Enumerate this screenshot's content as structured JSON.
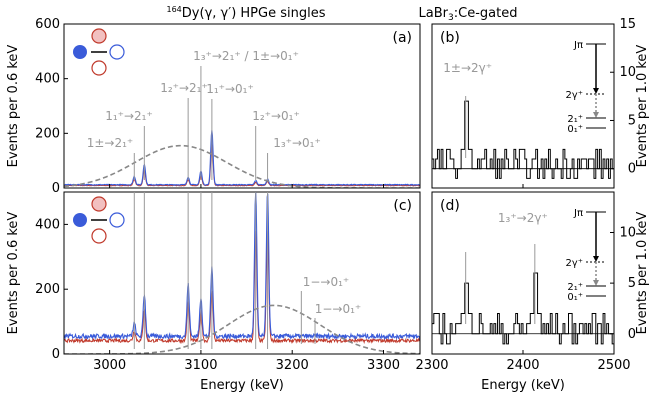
{
  "left_title": "164Dy(γ⃗, γ′) HPGe singles",
  "left_title_parts": {
    "mass": "164",
    "rest": "Dy(",
    "gamma": "γ",
    "comma": ", ",
    "gammap": "γ′",
    "close": ") HPGe singles"
  },
  "right_title": "LaBr3:Ce-gated",
  "right_title_parts": {
    "a": "LaBr",
    "sub": "3",
    "b": ":Ce-gated"
  },
  "chart_data": [
    {
      "panel": "(a)",
      "type": "line",
      "xlabel": "Energy (keV)",
      "ylabel": "Events per 0.6 keV",
      "xlim": [
        2950,
        3340
      ],
      "ylim": [
        0,
        600
      ],
      "xticks": [
        3000,
        3100,
        3200,
        3300
      ],
      "yticks": [
        0,
        200,
        400,
        600
      ],
      "series": [
        {
          "role": "parallel",
          "color": "#3a5bd9"
        },
        {
          "role": "perpendicular",
          "color": "#c0392b"
        },
        {
          "role": "gaussian envelope",
          "color": "#888888",
          "style": "dashed",
          "center": 3078,
          "sigma": 50,
          "amplitude": 155
        }
      ],
      "peaks": [
        {
          "x": 3027,
          "y": 30
        },
        {
          "x": 3038,
          "y": 75
        },
        {
          "x": 3086,
          "y": 28
        },
        {
          "x": 3100,
          "y": 50
        },
        {
          "x": 3112,
          "y": 200
        },
        {
          "x": 3160,
          "y": 15
        },
        {
          "x": 3173,
          "y": 20
        }
      ],
      "baseline": 12,
      "annotations": [
        {
          "x": 3027,
          "text": "1±→2₁⁺"
        },
        {
          "x": 3038,
          "text": "1₁⁺→2₁⁺"
        },
        {
          "x": 3086,
          "text": "1₂⁺→2₁⁺"
        },
        {
          "x": 3100,
          "text": "1₃⁺→2₁⁺ / 1±→0₁⁺"
        },
        {
          "x": 3112,
          "text": "1₁⁺→0₁⁺"
        },
        {
          "x": 3160,
          "text": "1₂⁺→0₁⁺"
        },
        {
          "x": 3173,
          "text": "1₃⁺→0₁⁺"
        }
      ]
    },
    {
      "panel": "(c)",
      "type": "line",
      "xlabel": "Energy (keV)",
      "ylabel": "Events per 0.6 keV",
      "xlim": [
        2950,
        3340
      ],
      "ylim": [
        0,
        500
      ],
      "xticks": [
        3000,
        3100,
        3200,
        3300
      ],
      "yticks": [
        0,
        200,
        400
      ],
      "series": [
        {
          "role": "parallel",
          "color": "#3a5bd9"
        },
        {
          "role": "perpendicular",
          "color": "#c0392b"
        },
        {
          "role": "gaussian envelope",
          "color": "#888888",
          "style": "dashed",
          "center": 3180,
          "sigma": 50,
          "amplitude": 150
        }
      ],
      "peaks": [
        {
          "x": 3027,
          "y": 40
        },
        {
          "x": 3038,
          "y": 130
        },
        {
          "x": 3086,
          "y": 160
        },
        {
          "x": 3100,
          "y": 120
        },
        {
          "x": 3112,
          "y": 210
        },
        {
          "x": 3160,
          "y": 445
        },
        {
          "x": 3173,
          "y": 450
        }
      ],
      "baseline": 55,
      "annotations": [
        {
          "x": 3210,
          "text": "1−→0₁⁺"
        },
        {
          "x": 3225,
          "text": "1−→0₁⁺"
        }
      ]
    },
    {
      "panel": "(b)",
      "type": "line",
      "xlabel": "Energy (keV)",
      "ylabel": "Events per 1.0 keV",
      "xlim": [
        2300,
        2500
      ],
      "ylim": [
        -2,
        15
      ],
      "xticks": [
        2300,
        2400,
        2500
      ],
      "yticks": [
        0,
        5,
        10,
        15
      ],
      "peaks": [
        {
          "x": 2337,
          "y": 7
        }
      ],
      "annotations": [
        {
          "x": 2337,
          "text": "1±→2γ⁺"
        }
      ],
      "levels": [
        "Jπ",
        "2γ⁺",
        "2₁⁺",
        "0₁⁺"
      ]
    },
    {
      "panel": "(d)",
      "type": "line",
      "xlabel": "Energy (keV)",
      "ylabel": "Events per 1.0 keV",
      "xlim": [
        2300,
        2500
      ],
      "ylim": [
        -2,
        14
      ],
      "xticks": [
        2300,
        2400,
        2500
      ],
      "yticks": [
        0,
        5,
        10
      ],
      "peaks": [
        {
          "x": 2337,
          "y": 5
        },
        {
          "x": 2413,
          "y": 6
        }
      ],
      "annotations": [
        {
          "x": 2413,
          "text": "1₃⁺→2γ⁺"
        }
      ],
      "levels": [
        "Jπ",
        "2γ⁺",
        "2₁⁺",
        "0₁⁺"
      ]
    }
  ]
}
